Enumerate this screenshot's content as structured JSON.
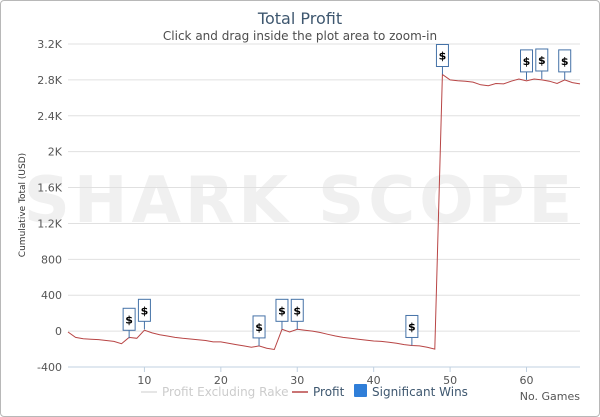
{
  "chart_data": {
    "type": "line",
    "title": "Total Profit",
    "subtitle": "Click and drag inside the plot area to zoom-in",
    "ylabel": "Cumulative Total (USD)",
    "xlabel": "No. Games",
    "xlim": [
      0,
      67
    ],
    "ylim": [
      -400,
      3200
    ],
    "x_ticks": [
      10,
      20,
      30,
      40,
      50,
      60
    ],
    "y_ticks": [
      -400,
      0,
      400,
      800,
      1200,
      1600,
      2000,
      2400,
      2800,
      3200
    ],
    "y_tick_labels": [
      "-400",
      "0",
      "400",
      "800",
      "1.2K",
      "1.6K",
      "2K",
      "2.4K",
      "2.8K",
      "3.2K"
    ],
    "grid": "horizontal",
    "watermark": "SHARK SCOPE",
    "colors": {
      "profit": "#b84545",
      "excluding_rake": "#dddddd",
      "flags": "#4572a7",
      "legend_wins": "#2f7ed8"
    },
    "series": [
      {
        "name": "Profit",
        "x": [
          0,
          1,
          2,
          3,
          4,
          5,
          6,
          7,
          8,
          9,
          10,
          11,
          12,
          13,
          14,
          15,
          16,
          17,
          18,
          19,
          20,
          21,
          22,
          23,
          24,
          25,
          26,
          27,
          28,
          29,
          30,
          31,
          32,
          33,
          34,
          35,
          36,
          37,
          38,
          39,
          40,
          41,
          42,
          43,
          44,
          45,
          46,
          47,
          48,
          49,
          50,
          51,
          52,
          53,
          54,
          55,
          56,
          57,
          58,
          59,
          60,
          61,
          62,
          63,
          64,
          65,
          66,
          67
        ],
        "y": [
          -10,
          -70,
          -85,
          -90,
          -95,
          -105,
          -115,
          -140,
          -70,
          -80,
          10,
          -20,
          -40,
          -55,
          -70,
          -80,
          -88,
          -96,
          -105,
          -120,
          -120,
          -135,
          -150,
          -165,
          -180,
          -165,
          -190,
          -205,
          20,
          -10,
          20,
          10,
          0,
          -15,
          -35,
          -55,
          -70,
          -80,
          -90,
          -100,
          -110,
          -115,
          -125,
          -135,
          -150,
          -160,
          -165,
          -180,
          -200,
          2860,
          2800,
          2790,
          2785,
          2775,
          2745,
          2735,
          2760,
          2755,
          2785,
          2810,
          2790,
          2810,
          2800,
          2785,
          2760,
          2800,
          2770,
          2755
        ]
      },
      {
        "name": "Profit Excluding Rake",
        "x": [],
        "y": []
      }
    ],
    "significant_wins": [
      {
        "x": 8,
        "y": -80
      },
      {
        "x": 10,
        "y": 20
      },
      {
        "x": 25,
        "y": -165
      },
      {
        "x": 28,
        "y": 20
      },
      {
        "x": 30,
        "y": 20
      },
      {
        "x": 45,
        "y": -160
      },
      {
        "x": 49,
        "y": 2860
      },
      {
        "x": 60,
        "y": 2800
      },
      {
        "x": 62,
        "y": 2810
      },
      {
        "x": 65,
        "y": 2800
      }
    ],
    "flag_label": "$",
    "legend": [
      {
        "label": "Profit Excluding Rake",
        "symbol": "line",
        "color": "#dddddd",
        "text_color": "#cccccc"
      },
      {
        "label": "Profit",
        "symbol": "line",
        "color": "#b84545",
        "text_color": "#3e576f"
      },
      {
        "label": "Significant Wins",
        "symbol": "box",
        "color": "#2f7ed8",
        "text_color": "#3e576f"
      }
    ]
  }
}
